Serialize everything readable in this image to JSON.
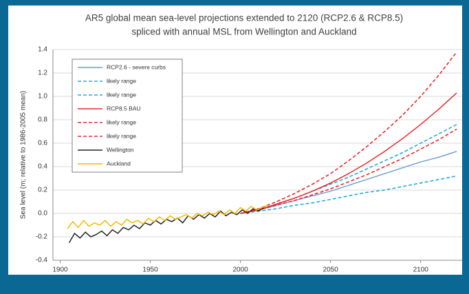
{
  "chart_data": {
    "type": "line",
    "title": "AR5 global mean sea-level projections extended to 2120  (RCP2.6 & RCP8.5)",
    "subtitle": "spliced with annual MSL from Wellington and Auckland",
    "y_label": "Sea level (m; relative to 1986-2005 mean)",
    "xlim": [
      1896,
      2123
    ],
    "xticks": [
      1900,
      1950,
      2000,
      2050,
      2100
    ],
    "ylim": [
      -0.4,
      1.4
    ],
    "yticks": [
      -0.4,
      -0.2,
      {
        "value": 0,
        "label": "0.0"
      },
      0.2,
      0.4,
      0.6,
      0.8,
      {
        "value": 1,
        "label": "1.0"
      },
      1.2,
      1.4
    ],
    "grid": true,
    "legend": "upper left",
    "series": [
      {
        "name": "RCP2.6 - severe curbs",
        "color": "#6f9fd0",
        "style": "solid",
        "x": [
          2000,
          2010,
          2020,
          2030,
          2040,
          2050,
          2060,
          2070,
          2080,
          2090,
          2100,
          2110,
          2120
        ],
        "values": [
          0,
          0.03,
          0.07,
          0.11,
          0.15,
          0.19,
          0.24,
          0.29,
          0.34,
          0.39,
          0.44,
          0.48,
          0.53
        ]
      },
      {
        "name": "likely range",
        "color": "#1fa9e0",
        "style": "dashed",
        "x": [
          2000,
          2010,
          2020,
          2030,
          2040,
          2050,
          2060,
          2070,
          2080,
          2090,
          2100,
          2110,
          2120
        ],
        "values": [
          0,
          0.03,
          0.08,
          0.13,
          0.19,
          0.25,
          0.31,
          0.38,
          0.45,
          0.52,
          0.6,
          0.68,
          0.76
        ]
      },
      {
        "name": "likely range",
        "color": "#1fa9e0",
        "style": "dashed",
        "x": [
          2000,
          2010,
          2020,
          2030,
          2040,
          2050,
          2060,
          2070,
          2080,
          2090,
          2100,
          2110,
          2120
        ],
        "values": [
          0,
          0.02,
          0.04,
          0.07,
          0.09,
          0.12,
          0.15,
          0.18,
          0.2,
          0.23,
          0.26,
          0.29,
          0.32
        ]
      },
      {
        "name": "RCP8.5 BAU",
        "color": "#e8262a",
        "style": "solid",
        "x": [
          2000,
          2010,
          2020,
          2030,
          2040,
          2050,
          2060,
          2070,
          2080,
          2090,
          2100,
          2110,
          2120
        ],
        "values": [
          0,
          0.03,
          0.08,
          0.13,
          0.19,
          0.26,
          0.34,
          0.43,
          0.53,
          0.64,
          0.76,
          0.89,
          1.03
        ]
      },
      {
        "name": "likely range",
        "color": "#e8262a",
        "style": "dashed",
        "x": [
          2000,
          2010,
          2020,
          2030,
          2040,
          2050,
          2060,
          2070,
          2080,
          2090,
          2100,
          2110,
          2120
        ],
        "values": [
          0,
          0.04,
          0.1,
          0.17,
          0.25,
          0.34,
          0.45,
          0.57,
          0.7,
          0.84,
          1,
          1.18,
          1.38
        ]
      },
      {
        "name": "likely range",
        "color": "#e8262a",
        "style": "dashed",
        "x": [
          2000,
          2010,
          2020,
          2030,
          2040,
          2050,
          2060,
          2070,
          2080,
          2090,
          2100,
          2110,
          2120
        ],
        "values": [
          0,
          0.03,
          0.07,
          0.11,
          0.16,
          0.21,
          0.27,
          0.33,
          0.4,
          0.47,
          0.55,
          0.63,
          0.72
        ]
      },
      {
        "name": "Wellington",
        "color": "#222222",
        "style": "solid",
        "x": [
          1905,
          1908,
          1911,
          1914,
          1917,
          1920,
          1923,
          1926,
          1929,
          1932,
          1935,
          1938,
          1941,
          1944,
          1947,
          1950,
          1953,
          1956,
          1959,
          1962,
          1965,
          1968,
          1971,
          1974,
          1977,
          1980,
          1983,
          1986,
          1989,
          1992,
          1995,
          1998,
          2001,
          2004,
          2007,
          2010,
          2013
        ],
        "values": [
          -0.25,
          -0.17,
          -0.21,
          -0.16,
          -0.2,
          -0.18,
          -0.15,
          -0.19,
          -0.14,
          -0.17,
          -0.12,
          -0.14,
          -0.1,
          -0.13,
          -0.08,
          -0.1,
          -0.06,
          -0.09,
          -0.05,
          -0.07,
          -0.04,
          -0.08,
          -0.02,
          -0.05,
          -0.01,
          -0.04,
          0,
          -0.03,
          0.02,
          -0.02,
          0.01,
          -0.01,
          0.03,
          0,
          0.04,
          0.02,
          0.05
        ]
      },
      {
        "name": "Auckland",
        "color": "#f5b800",
        "style": "solid",
        "x": [
          1904,
          1907,
          1910,
          1913,
          1916,
          1919,
          1922,
          1925,
          1928,
          1931,
          1934,
          1937,
          1940,
          1943,
          1946,
          1949,
          1952,
          1955,
          1958,
          1961,
          1964,
          1967,
          1970,
          1973,
          1976,
          1979,
          1982,
          1985,
          1988,
          1991,
          1994,
          1997,
          2000,
          2003,
          2006,
          2009,
          2012,
          2015
        ],
        "values": [
          -0.13,
          -0.07,
          -0.12,
          -0.06,
          -0.11,
          -0.08,
          -0.1,
          -0.06,
          -0.11,
          -0.07,
          -0.1,
          -0.05,
          -0.08,
          -0.06,
          -0.09,
          -0.04,
          -0.07,
          -0.03,
          -0.06,
          -0.02,
          -0.05,
          -0.03,
          -0.01,
          -0.04,
          0,
          -0.02,
          0.01,
          -0.01,
          0.02,
          -0.01,
          0.03,
          0,
          0.05,
          0.02,
          0.06,
          0.03,
          0.05,
          0.07
        ]
      }
    ]
  }
}
